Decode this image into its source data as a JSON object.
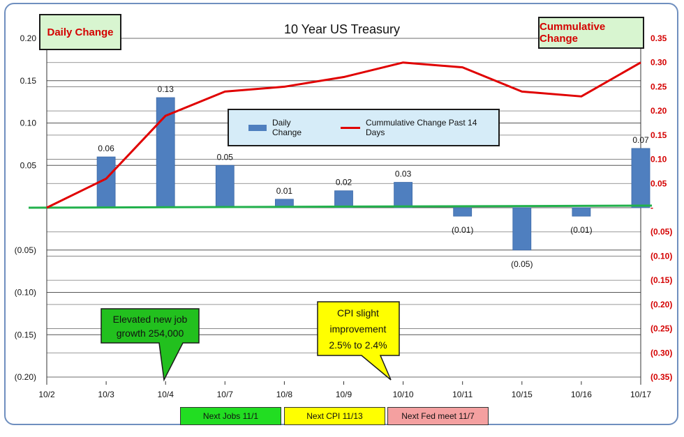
{
  "chart_data": {
    "type": "bar+line",
    "title": "10 Year US Treasury",
    "categories": [
      "10/2",
      "10/3",
      "10/4",
      "10/7",
      "10/8",
      "10/9",
      "10/10",
      "10/11",
      "10/15",
      "10/16",
      "10/17"
    ],
    "series": [
      {
        "name": "Daily Change",
        "type": "bar",
        "axis": "left",
        "color": "#4f7fbf",
        "values": [
          0,
          0.06,
          0.13,
          0.05,
          0.01,
          0.02,
          0.03,
          -0.01,
          -0.05,
          -0.01,
          0.07
        ],
        "labels": [
          "",
          "0.06",
          "0.13",
          "0.05",
          "0.01",
          "0.02",
          "0.03",
          "(0.01)",
          "(0.05)",
          "(0.01)",
          "0.07"
        ]
      },
      {
        "name": "Cummulative Change Past 14 Days",
        "type": "line",
        "axis": "right",
        "color": "#e00000",
        "values": [
          0,
          0.06,
          0.19,
          0.24,
          0.25,
          0.27,
          0.3,
          0.29,
          0.24,
          0.23,
          0.3
        ]
      }
    ],
    "left_axis": {
      "range": [
        -0.2,
        0.2
      ],
      "ticks": [
        "(0.20)",
        "(0.15)",
        "(0.10)",
        "(0.05)",
        "",
        "0.05",
        "0.10",
        "0.15",
        "0.20"
      ]
    },
    "right_axis": {
      "range": [
        -0.35,
        0.35
      ],
      "ticks": [
        "(0.35)",
        "(0.30)",
        "(0.25)",
        "(0.20)",
        "(0.15)",
        "(0.10)",
        "(0.05)",
        "-",
        "0.05",
        "0.10",
        "0.15",
        "0.20",
        "0.25",
        "0.30",
        "0.35"
      ]
    },
    "baseline_color": "#22b14c"
  },
  "labels": {
    "daily_change": "Daily Change",
    "cumulative_change": "Cummulative Change",
    "legend_bar": "Daily Change",
    "legend_line": "Cummulative Change Past 14 Days"
  },
  "callouts": [
    {
      "text_lines": [
        "Elevated new job",
        "growth 254,000"
      ],
      "color": "#22c01e"
    },
    {
      "text_lines": [
        "CPI slight",
        "improvement",
        "2.5% to 2.4%"
      ],
      "color": "#ffff00"
    }
  ],
  "bottom_tags": [
    {
      "text": "Next Jobs 11/1",
      "color": "#22dd22"
    },
    {
      "text": "Next CPI 11/13",
      "color": "#ffff00"
    },
    {
      "text": "Next Fed meet 11/7",
      "color": "#f4a0a0"
    }
  ]
}
